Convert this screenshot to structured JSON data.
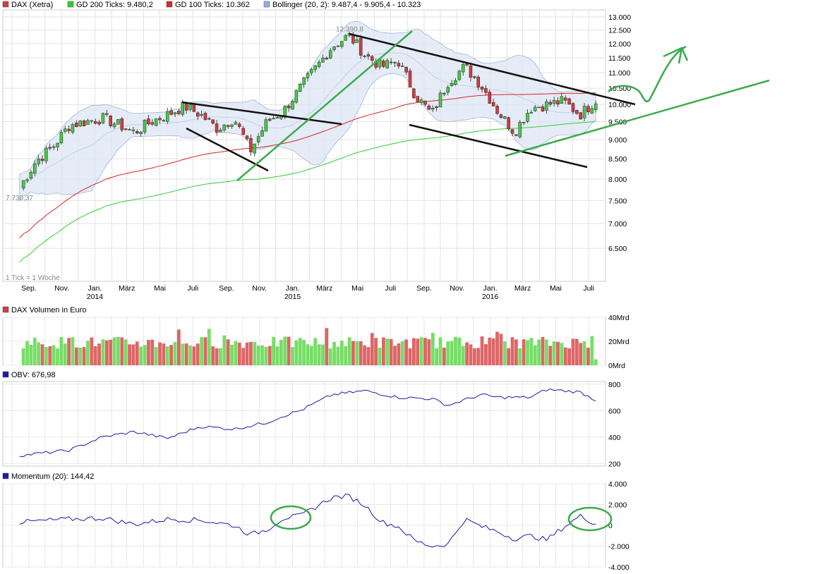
{
  "legend_main": [
    {
      "label": "DAX (Xetra)",
      "color": "#d63a3a"
    },
    {
      "label": "GD 200 Ticks: 9.480,2",
      "color": "#33cc33"
    },
    {
      "label": "GD 100 Ticks: 10.362",
      "color": "#dd2222"
    },
    {
      "label": "Bollinger (20, 2): 9.487,4 - 9.905,4 - 10.323",
      "color": "#99aadd"
    }
  ],
  "annotations": {
    "high_label": "12.390,8",
    "low_label": "7.730,37",
    "tick_note": "1 Tick = 1 Woche"
  },
  "month_labels": [
    "Sep.",
    "Nov.",
    "Jan.",
    "März",
    "Mai",
    "Juli",
    "Sep.",
    "Nov.",
    "Jan.",
    "März",
    "Mai",
    "Juli",
    "Sep.",
    "Nov.",
    "Jan.",
    "März",
    "Mai",
    "Juli"
  ],
  "year_labels": [
    "2014",
    "2015",
    "2016"
  ],
  "panels": {
    "volume": {
      "title": "DAX Volumen in Euro",
      "ticks": [
        "40Mrd",
        "20Mrd",
        "0Mrd"
      ],
      "color": "#d63a3a"
    },
    "obv": {
      "title": "OBV: 676,98",
      "ticks": [
        "800",
        "600",
        "400",
        "200"
      ],
      "color": "#1a1aaa"
    },
    "momentum": {
      "title": "Momentum (20): 144,42",
      "ticks": [
        "4.000",
        "2.000",
        "0",
        "-2.000",
        "-4.000"
      ],
      "color": "#1a1aaa"
    }
  },
  "chart_data": [
    {
      "type": "candlestick",
      "title": "DAX (Xetra)",
      "period": "1 Tick = 1 Woche",
      "y_ticks": [
        13000,
        12500,
        12000,
        11500,
        11000,
        10500,
        10000,
        9500,
        9000,
        8500,
        8000,
        7500,
        7000,
        6500
      ],
      "ylim": [
        6000,
        13000
      ],
      "y_log": true,
      "close_approx": [
        {
          "date": "2013-08",
          "value": 7800
        },
        {
          "date": "2013-09",
          "value": 8450
        },
        {
          "date": "2013-10",
          "value": 8800
        },
        {
          "date": "2013-11",
          "value": 9400
        },
        {
          "date": "2014-01",
          "value": 9600
        },
        {
          "date": "2014-02",
          "value": 9400
        },
        {
          "date": "2014-03",
          "value": 9200
        },
        {
          "date": "2014-04",
          "value": 9500
        },
        {
          "date": "2014-05",
          "value": 9700
        },
        {
          "date": "2014-06",
          "value": 9950
        },
        {
          "date": "2014-07",
          "value": 9700
        },
        {
          "date": "2014-08",
          "value": 9300
        },
        {
          "date": "2014-09",
          "value": 9600
        },
        {
          "date": "2014-10",
          "value": 8700
        },
        {
          "date": "2014-11",
          "value": 9500
        },
        {
          "date": "2014-12",
          "value": 9800
        },
        {
          "date": "2015-01",
          "value": 10500
        },
        {
          "date": "2015-02",
          "value": 11200
        },
        {
          "date": "2015-03",
          "value": 11900
        },
        {
          "date": "2015-04",
          "value": 12300
        },
        {
          "date": "2015-05",
          "value": 11600
        },
        {
          "date": "2015-06",
          "value": 11200
        },
        {
          "date": "2015-07",
          "value": 11400
        },
        {
          "date": "2015-08",
          "value": 10300
        },
        {
          "date": "2015-09",
          "value": 9700
        },
        {
          "date": "2015-10",
          "value": 10700
        },
        {
          "date": "2015-11",
          "value": 11200
        },
        {
          "date": "2015-12",
          "value": 10600
        },
        {
          "date": "2016-01",
          "value": 9800
        },
        {
          "date": "2016-02",
          "value": 9200
        },
        {
          "date": "2016-03",
          "value": 9900
        },
        {
          "date": "2016-04",
          "value": 10000
        },
        {
          "date": "2016-05",
          "value": 10100
        },
        {
          "date": "2016-06",
          "value": 9700
        },
        {
          "date": "2016-07",
          "value": 10150
        }
      ],
      "high": 12390.8,
      "low": 7730.37
    },
    {
      "type": "bar",
      "title": "DAX Volumen in Euro",
      "y_ticks": [
        "0Mrd",
        "20Mrd",
        "40Mrd"
      ],
      "ylim": [
        0,
        40
      ],
      "unit": "Mrd"
    },
    {
      "type": "line",
      "title": "OBV: 676,98",
      "y_ticks": [
        200,
        400,
        600,
        800
      ],
      "ylim": [
        180,
        820
      ],
      "points": [
        {
          "date": "2013-08",
          "value": 260
        },
        {
          "date": "2013-11",
          "value": 300
        },
        {
          "date": "2014-01",
          "value": 400
        },
        {
          "date": "2014-03",
          "value": 440
        },
        {
          "date": "2014-05",
          "value": 390
        },
        {
          "date": "2014-07",
          "value": 480
        },
        {
          "date": "2014-09",
          "value": 460
        },
        {
          "date": "2014-11",
          "value": 510
        },
        {
          "date": "2014-12",
          "value": 560
        },
        {
          "date": "2015-01",
          "value": 600
        },
        {
          "date": "2015-03",
          "value": 720
        },
        {
          "date": "2015-05",
          "value": 750
        },
        {
          "date": "2015-07",
          "value": 700
        },
        {
          "date": "2015-09",
          "value": 690
        },
        {
          "date": "2015-10",
          "value": 640
        },
        {
          "date": "2015-12",
          "value": 720
        },
        {
          "date": "2016-01",
          "value": 700
        },
        {
          "date": "2016-03",
          "value": 700
        },
        {
          "date": "2016-04",
          "value": 760
        },
        {
          "date": "2016-06",
          "value": 740
        },
        {
          "date": "2016-07",
          "value": 676.98
        }
      ]
    },
    {
      "type": "line",
      "title": "Momentum (20): 144,42",
      "y_ticks": [
        -4000,
        -2000,
        0,
        2000,
        4000
      ],
      "ylim": [
        -4000,
        4000
      ],
      "points": [
        {
          "date": "2013-08",
          "value": 300
        },
        {
          "date": "2013-11",
          "value": 600
        },
        {
          "date": "2014-01",
          "value": 700
        },
        {
          "date": "2014-03",
          "value": 100
        },
        {
          "date": "2014-05",
          "value": 600
        },
        {
          "date": "2014-07",
          "value": 500
        },
        {
          "date": "2014-09",
          "value": 0
        },
        {
          "date": "2014-10",
          "value": -900
        },
        {
          "date": "2014-11",
          "value": -400
        },
        {
          "date": "2014-12",
          "value": 700
        },
        {
          "date": "2015-01",
          "value": 900
        },
        {
          "date": "2015-03",
          "value": 2700
        },
        {
          "date": "2015-04",
          "value": 2800
        },
        {
          "date": "2015-05",
          "value": 1900
        },
        {
          "date": "2015-06",
          "value": 300
        },
        {
          "date": "2015-07",
          "value": -100
        },
        {
          "date": "2015-08",
          "value": -1500
        },
        {
          "date": "2015-09",
          "value": -2000
        },
        {
          "date": "2015-10",
          "value": -1800
        },
        {
          "date": "2015-11",
          "value": 600
        },
        {
          "date": "2015-12",
          "value": -100
        },
        {
          "date": "2016-01",
          "value": -600
        },
        {
          "date": "2016-02",
          "value": -1300
        },
        {
          "date": "2016-03",
          "value": -1000
        },
        {
          "date": "2016-04",
          "value": -1400
        },
        {
          "date": "2016-05",
          "value": -200
        },
        {
          "date": "2016-06",
          "value": 900
        },
        {
          "date": "2016-07",
          "value": 144.42
        }
      ]
    }
  ]
}
